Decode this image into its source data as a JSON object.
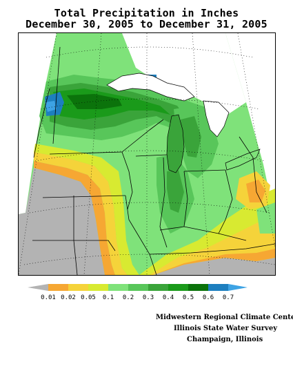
{
  "header": {
    "title_line1": "Total Precipitation in Inches",
    "title_line2": "December 30, 2005 to December 31, 2005"
  },
  "legend": {
    "ticks": [
      "0.01",
      "0.02",
      "0.05",
      "0.1",
      "0.2",
      "0.3",
      "0.4",
      "0.5",
      "0.6",
      "0.7"
    ],
    "colors": [
      "#b3b3b3",
      "#f6a733",
      "#f5d33a",
      "#d8ea31",
      "#7fe27a",
      "#58c65a",
      "#3aa43a",
      "#1a9a1a",
      "#0b730b",
      "#1d7fbf",
      "#3da3e4"
    ]
  },
  "colors": {
    "trace": "#b3b3b3",
    "lt_0_02": "#f6a733",
    "lt_0_05": "#f5d33a",
    "lt_0_1": "#d8ea31",
    "lt_0_2": "#7fe27a",
    "lt_0_3": "#58c65a",
    "lt_0_4": "#3aa43a",
    "lt_0_5": "#1a9a1a",
    "lt_0_6": "#0b730b",
    "lt_0_7": "#1d7fbf",
    "gt_0_7": "#3da3e4",
    "water": "#ffffff"
  },
  "credits": {
    "line1": "Midwestern Regional Climate Center",
    "line2": "Illinois State Water Survey",
    "line3": "Champaign, Illinois"
  }
}
